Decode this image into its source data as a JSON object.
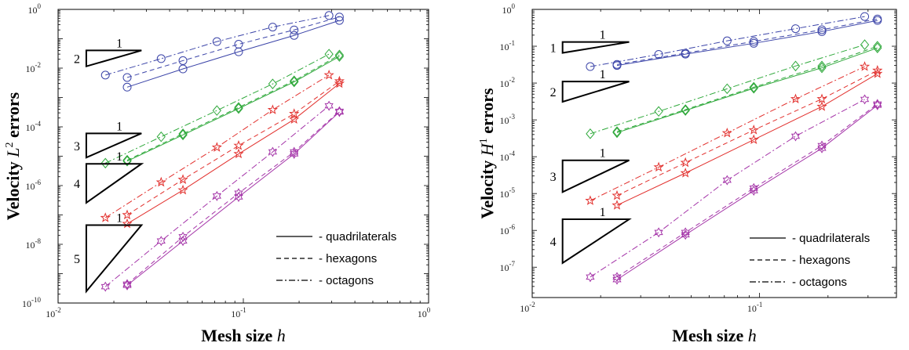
{
  "chart_data": [
    {
      "type": "line",
      "ylabel_parts": [
        "Velocity ",
        "L",
        "2",
        " errors"
      ],
      "xlabel_parts": [
        "Mesh size ",
        "h"
      ],
      "xscale": "log",
      "yscale": "log",
      "xlim": [
        0.01,
        1
      ],
      "ylim": [
        1e-10,
        1
      ],
      "x_tick_labels": [
        {
          "v": 0.01,
          "base": "10",
          "exp": "-2"
        },
        {
          "v": 0.1,
          "base": "10",
          "exp": "-1"
        },
        {
          "v": 1,
          "base": "10",
          "exp": "0"
        }
      ],
      "y_tick_labels": [
        {
          "v": 1e-10,
          "base": "10",
          "exp": "-10"
        },
        {
          "v": 1e-08,
          "base": "10",
          "exp": "-8"
        },
        {
          "v": 1e-06,
          "base": "10",
          "exp": "-6"
        },
        {
          "v": 0.0001,
          "base": "10",
          "exp": "-4"
        },
        {
          "v": 0.01,
          "base": "10",
          "exp": "-2"
        },
        {
          "v": 1,
          "base": "10",
          "exp": "0"
        }
      ],
      "grid": false,
      "legend_position": "bottom-right",
      "legend": [
        {
          "style": "solid",
          "label": "- quadrilaterals"
        },
        {
          "style": "dashed",
          "label": "- hexagons"
        },
        {
          "style": "dashdot",
          "label": "- octagons"
        }
      ],
      "slope_triangles": [
        {
          "run_label": "1",
          "rise_label": "2",
          "x0": 0.0142,
          "x1": 0.0282,
          "y_top": 0.04,
          "y_bot": 0.0115
        },
        {
          "run_label": "1",
          "rise_label": "3",
          "x0": 0.0142,
          "x1": 0.0282,
          "y_top": 6e-05,
          "y_bot": 9e-06
        },
        {
          "run_label": "1",
          "rise_label": "4",
          "x0": 0.0142,
          "x1": 0.0282,
          "y_top": 5.5e-06,
          "y_bot": 2.6e-07
        },
        {
          "run_label": "1",
          "rise_label": "5",
          "x0": 0.0142,
          "x1": 0.0282,
          "y_top": 4.5e-08,
          "y_bot": 2.5e-10
        }
      ],
      "series": [
        {
          "name": "",
          "order": 1,
          "mesh": "quadrilaterals",
          "marker": "circle",
          "color": "#3b44a8",
          "x": [
            0.0236,
            0.0472,
            0.0943,
            0.188,
            0.33
          ],
          "y": [
            0.00225,
            0.0094,
            0.036,
            0.13,
            0.42
          ]
        },
        {
          "name": "",
          "order": 1,
          "mesh": "hexagons",
          "marker": "circle",
          "color": "#3b44a8",
          "x": [
            0.0236,
            0.0472,
            0.0943,
            0.188,
            0.33
          ],
          "y": [
            0.0048,
            0.018,
            0.065,
            0.2,
            0.55
          ]
        },
        {
          "name": "",
          "order": 1,
          "mesh": "octagons",
          "marker": "circle",
          "color": "#3b44a8",
          "x": [
            0.018,
            0.036,
            0.072,
            0.144,
            0.29
          ],
          "y": [
            0.0058,
            0.021,
            0.08,
            0.25,
            0.62
          ]
        },
        {
          "name": "",
          "order": 2,
          "mesh": "quadrilaterals",
          "marker": "diamond",
          "color": "#2ea83a",
          "x": [
            0.0236,
            0.0472,
            0.0943,
            0.188,
            0.33
          ],
          "y": [
            6.8e-06,
            5.3e-05,
            0.00042,
            0.0034,
            0.025
          ]
        },
        {
          "name": "",
          "order": 2,
          "mesh": "hexagons",
          "marker": "diamond",
          "color": "#2ea83a",
          "x": [
            0.0236,
            0.0472,
            0.0943,
            0.188,
            0.33
          ],
          "y": [
            7.3e-06,
            5.8e-05,
            0.00046,
            0.0037,
            0.028
          ]
        },
        {
          "name": "",
          "order": 2,
          "mesh": "octagons",
          "marker": "diamond",
          "color": "#2ea83a",
          "x": [
            0.018,
            0.036,
            0.072,
            0.144,
            0.29
          ],
          "y": [
            5.8e-06,
            4.6e-05,
            0.00036,
            0.0029,
            0.03
          ]
        },
        {
          "name": "",
          "order": 3,
          "mesh": "quadrilaterals",
          "marker": "star",
          "color": "#e2312e",
          "x": [
            0.0236,
            0.0472,
            0.0943,
            0.188,
            0.33
          ],
          "y": [
            5e-08,
            7e-07,
            1.2e-05,
            0.00018,
            0.003
          ]
        },
        {
          "name": "",
          "order": 3,
          "mesh": "hexagons",
          "marker": "star",
          "color": "#e2312e",
          "x": [
            0.0236,
            0.0472,
            0.0943,
            0.188,
            0.33
          ],
          "y": [
            1e-07,
            1.6e-06,
            2.3e-05,
            0.00028,
            0.0036
          ]
        },
        {
          "name": "",
          "order": 3,
          "mesh": "octagons",
          "marker": "star",
          "color": "#e2312e",
          "x": [
            0.018,
            0.036,
            0.072,
            0.144,
            0.29
          ],
          "y": [
            8e-08,
            1.3e-06,
            2e-05,
            0.00038,
            0.0058
          ]
        },
        {
          "name": "",
          "order": 4,
          "mesh": "quadrilaterals",
          "marker": "hexagram",
          "color": "#a434a8",
          "x": [
            0.0236,
            0.0472,
            0.0943,
            0.188,
            0.33
          ],
          "y": [
            4e-10,
            1.3e-08,
            4.1e-07,
            1.2e-05,
            0.00032
          ]
        },
        {
          "name": "",
          "order": 4,
          "mesh": "hexagons",
          "marker": "hexagram",
          "color": "#a434a8",
          "x": [
            0.0236,
            0.0472,
            0.0943,
            0.188,
            0.33
          ],
          "y": [
            4.4e-10,
            1.8e-08,
            5.5e-07,
            1.4e-05,
            0.00034
          ]
        },
        {
          "name": "",
          "order": 4,
          "mesh": "octagons",
          "marker": "hexagram",
          "color": "#a434a8",
          "x": [
            0.018,
            0.036,
            0.072,
            0.144,
            0.29
          ],
          "y": [
            3.6e-10,
            1.3e-08,
            4.4e-07,
            1.4e-05,
            0.00052
          ]
        }
      ]
    },
    {
      "type": "line",
      "ylabel_parts": [
        "Velocity ",
        "H",
        "1",
        " errors"
      ],
      "xlabel_parts": [
        "Mesh size ",
        "h"
      ],
      "xscale": "log",
      "yscale": "log",
      "xlim": [
        0.01,
        0.4
      ],
      "ylim": [
        1.5e-08,
        1
      ],
      "x_tick_labels": [
        {
          "v": 0.01,
          "base": "10",
          "exp": "-2"
        },
        {
          "v": 0.1,
          "base": "10",
          "exp": "-1"
        }
      ],
      "y_tick_labels": [
        {
          "v": 1e-07,
          "base": "10",
          "exp": "-7"
        },
        {
          "v": 1e-06,
          "base": "10",
          "exp": "-6"
        },
        {
          "v": 1e-05,
          "base": "10",
          "exp": "-5"
        },
        {
          "v": 0.0001,
          "base": "10",
          "exp": "-4"
        },
        {
          "v": 0.001,
          "base": "10",
          "exp": "-3"
        },
        {
          "v": 0.01,
          "base": "10",
          "exp": "-2"
        },
        {
          "v": 0.1,
          "base": "10",
          "exp": "-1"
        },
        {
          "v": 1,
          "base": "10",
          "exp": "0"
        }
      ],
      "grid": false,
      "legend_position": "bottom-right",
      "legend": [
        {
          "style": "solid",
          "label": "- quadrilaterals"
        },
        {
          "style": "dashed",
          "label": "- hexagons"
        },
        {
          "style": "dashdot",
          "label": "- octagons"
        }
      ],
      "slope_triangles": [
        {
          "run_label": "1",
          "rise_label": "1",
          "x0": 0.0136,
          "x1": 0.0267,
          "y_top": 0.13,
          "y_bot": 0.066
        },
        {
          "run_label": "1",
          "rise_label": "2",
          "x0": 0.0136,
          "x1": 0.0267,
          "y_top": 0.011,
          "y_bot": 0.0031
        },
        {
          "run_label": "1",
          "rise_label": "3",
          "x0": 0.0136,
          "x1": 0.0267,
          "y_top": 8e-05,
          "y_bot": 1.1e-05
        },
        {
          "run_label": "1",
          "rise_label": "4",
          "x0": 0.0136,
          "x1": 0.0267,
          "y_top": 2e-06,
          "y_bot": 1.3e-07
        }
      ],
      "series": [
        {
          "name": "",
          "order": 1,
          "mesh": "quadrilaterals",
          "marker": "circle",
          "color": "#3b44a8",
          "x": [
            0.0236,
            0.0472,
            0.0943,
            0.188,
            0.33
          ],
          "y": [
            0.03,
            0.061,
            0.12,
            0.25,
            0.5
          ]
        },
        {
          "name": "",
          "order": 1,
          "mesh": "hexagons",
          "marker": "circle",
          "color": "#3b44a8",
          "x": [
            0.0236,
            0.0472,
            0.0943,
            0.188,
            0.33
          ],
          "y": [
            0.032,
            0.065,
            0.135,
            0.28,
            0.55
          ]
        },
        {
          "name": "",
          "order": 1,
          "mesh": "octagons",
          "marker": "circle",
          "color": "#3b44a8",
          "x": [
            0.018,
            0.036,
            0.072,
            0.144,
            0.29
          ],
          "y": [
            0.028,
            0.06,
            0.14,
            0.3,
            0.64
          ]
        },
        {
          "name": "",
          "order": 2,
          "mesh": "quadrilaterals",
          "marker": "diamond",
          "color": "#2ea83a",
          "x": [
            0.0236,
            0.0472,
            0.0943,
            0.188,
            0.33
          ],
          "y": [
            0.00045,
            0.0018,
            0.0072,
            0.026,
            0.09
          ]
        },
        {
          "name": "",
          "order": 2,
          "mesh": "hexagons",
          "marker": "diamond",
          "color": "#2ea83a",
          "x": [
            0.0236,
            0.0472,
            0.0943,
            0.188,
            0.33
          ],
          "y": [
            0.00048,
            0.0019,
            0.0077,
            0.029,
            0.1
          ]
        },
        {
          "name": "",
          "order": 2,
          "mesh": "octagons",
          "marker": "diamond",
          "color": "#2ea83a",
          "x": [
            0.018,
            0.036,
            0.072,
            0.144,
            0.29
          ],
          "y": [
            0.00042,
            0.0017,
            0.007,
            0.029,
            0.11
          ]
        },
        {
          "name": "",
          "order": 3,
          "mesh": "quadrilaterals",
          "marker": "star",
          "color": "#e2312e",
          "x": [
            0.0236,
            0.0472,
            0.0943,
            0.188,
            0.33
          ],
          "y": [
            4.8e-06,
            3.6e-05,
            0.00029,
            0.0023,
            0.018
          ]
        },
        {
          "name": "",
          "order": 3,
          "mesh": "hexagons",
          "marker": "star",
          "color": "#e2312e",
          "x": [
            0.0236,
            0.0472,
            0.0943,
            0.188,
            0.33
          ],
          "y": [
            8.8e-06,
            6.9e-05,
            0.00053,
            0.0037,
            0.022
          ]
        },
        {
          "name": "",
          "order": 3,
          "mesh": "octagons",
          "marker": "star",
          "color": "#e2312e",
          "x": [
            0.018,
            0.036,
            0.072,
            0.144,
            0.29
          ],
          "y": [
            6.4e-06,
            5.2e-05,
            0.00044,
            0.0037,
            0.028
          ]
        },
        {
          "name": "",
          "order": 4,
          "mesh": "quadrilaterals",
          "marker": "hexagram",
          "color": "#a434a8",
          "x": [
            0.0236,
            0.0472,
            0.0943,
            0.188,
            0.33
          ],
          "y": [
            4.6e-08,
            7.6e-07,
            1.2e-05,
            0.00017,
            0.0025
          ]
        },
        {
          "name": "",
          "order": 4,
          "mesh": "hexagons",
          "marker": "hexagram",
          "color": "#a434a8",
          "x": [
            0.0236,
            0.0472,
            0.0943,
            0.188,
            0.33
          ],
          "y": [
            5.4e-08,
            8.8e-07,
            1.4e-05,
            0.0002,
            0.0027
          ]
        },
        {
          "name": "",
          "order": 4,
          "mesh": "octagons",
          "marker": "hexagram",
          "color": "#a434a8",
          "x": [
            0.018,
            0.036,
            0.072,
            0.144,
            0.29
          ],
          "y": [
            5.4e-08,
            8.8e-07,
            2.3e-05,
            0.00036,
            0.0036
          ]
        }
      ]
    }
  ]
}
